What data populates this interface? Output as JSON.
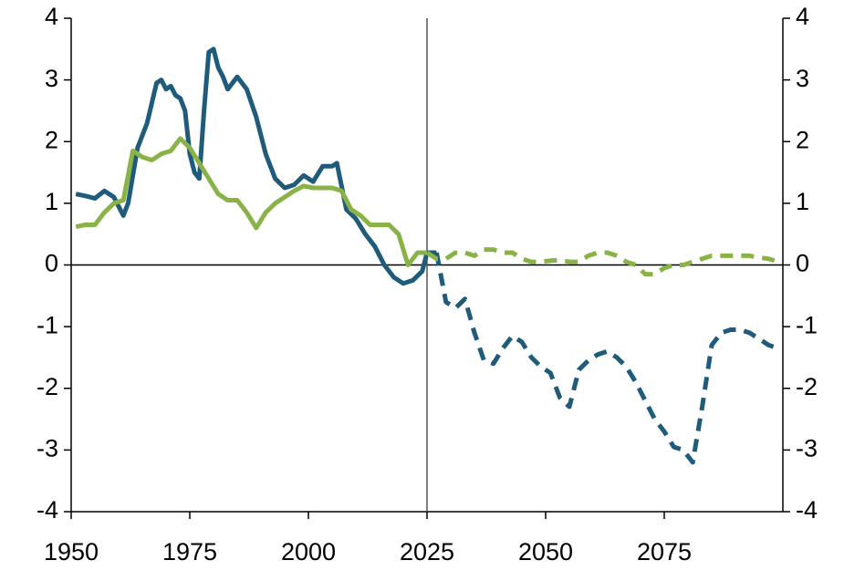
{
  "chart_data": {
    "type": "line",
    "xlim": [
      1950,
      2100
    ],
    "xticks": [
      1950,
      1975,
      2000,
      2025,
      2050,
      2075
    ],
    "ylim": [
      -4,
      4
    ],
    "yticks": [
      -4,
      -3,
      -2,
      -1,
      0,
      1,
      2,
      3,
      4
    ],
    "y2lim": [
      -4,
      4
    ],
    "y2ticks": [
      -4,
      -3,
      -2,
      -1,
      0,
      1,
      2,
      3,
      4
    ],
    "vline": 2025,
    "series": [
      {
        "color": "#1f5b7a",
        "style": "solid",
        "x": [
          1951,
          1953,
          1955,
          1957,
          1959,
          1961,
          1962,
          1964,
          1966,
          1968,
          1969,
          1970,
          1971,
          1972,
          1973,
          1974,
          1975,
          1976,
          1977,
          1978,
          1979,
          1980,
          1981,
          1982,
          1983,
          1985,
          1987,
          1989,
          1991,
          1993,
          1995,
          1997,
          1999,
          2001,
          2003,
          2005,
          2006,
          2008,
          2010,
          2012,
          2014,
          2016,
          2018,
          2020,
          2022,
          2024,
          2025,
          2027
        ],
        "values": [
          1.15,
          1.12,
          1.08,
          1.2,
          1.1,
          0.8,
          1.0,
          1.9,
          2.3,
          2.95,
          3.0,
          2.85,
          2.9,
          2.75,
          2.7,
          2.5,
          1.8,
          1.5,
          1.4,
          2.5,
          3.45,
          3.5,
          3.2,
          3.05,
          2.85,
          3.05,
          2.85,
          2.4,
          1.8,
          1.4,
          1.25,
          1.3,
          1.45,
          1.35,
          1.6,
          1.6,
          1.65,
          0.9,
          0.75,
          0.5,
          0.3,
          0.0,
          -0.2,
          -0.3,
          -0.25,
          -0.1,
          0.2,
          0.2
        ]
      },
      {
        "color": "#1f5b7a",
        "style": "dashed",
        "x": [
          2027,
          2029,
          2031,
          2033,
          2035,
          2037,
          2039,
          2041,
          2043,
          2045,
          2047,
          2049,
          2051,
          2053,
          2055,
          2057,
          2059,
          2061,
          2063,
          2065,
          2067,
          2069,
          2071,
          2073,
          2075,
          2077,
          2079,
          2081,
          2083,
          2085,
          2087,
          2089,
          2091,
          2093,
          2095,
          2097,
          2099
        ],
        "values": [
          0.2,
          -0.6,
          -0.7,
          -0.55,
          -1.1,
          -1.55,
          -1.6,
          -1.35,
          -1.15,
          -1.25,
          -1.5,
          -1.65,
          -1.75,
          -2.15,
          -2.3,
          -1.7,
          -1.55,
          -1.45,
          -1.4,
          -1.5,
          -1.65,
          -1.9,
          -2.2,
          -2.5,
          -2.7,
          -2.95,
          -3.0,
          -3.2,
          -2.3,
          -1.3,
          -1.1,
          -1.05,
          -1.05,
          -1.1,
          -1.2,
          -1.3,
          -1.35
        ]
      },
      {
        "color": "#8ab347",
        "style": "solid",
        "x": [
          1951,
          1953,
          1955,
          1957,
          1959,
          1961,
          1963,
          1965,
          1967,
          1969,
          1971,
          1973,
          1975,
          1977,
          1979,
          1981,
          1983,
          1985,
          1987,
          1989,
          1991,
          1993,
          1995,
          1997,
          1999,
          2001,
          2003,
          2005,
          2007,
          2009,
          2011,
          2013,
          2015,
          2017,
          2019,
          2021,
          2023,
          2025
        ],
        "values": [
          0.62,
          0.65,
          0.65,
          0.85,
          1.0,
          1.05,
          1.85,
          1.75,
          1.7,
          1.8,
          1.85,
          2.05,
          1.9,
          1.65,
          1.4,
          1.15,
          1.05,
          1.05,
          0.85,
          0.6,
          0.85,
          1.0,
          1.1,
          1.2,
          1.28,
          1.25,
          1.25,
          1.25,
          1.2,
          0.9,
          0.8,
          0.65,
          0.65,
          0.65,
          0.5,
          0.0,
          0.2,
          0.2
        ]
      },
      {
        "color": "#8ab347",
        "style": "dashed",
        "x": [
          2025,
          2027,
          2029,
          2031,
          2033,
          2035,
          2037,
          2039,
          2041,
          2043,
          2045,
          2047,
          2049,
          2051,
          2053,
          2055,
          2057,
          2059,
          2061,
          2063,
          2065,
          2067,
          2069,
          2071,
          2073,
          2075,
          2077,
          2079,
          2081,
          2083,
          2085,
          2087,
          2089,
          2091,
          2093,
          2095,
          2097,
          2099
        ],
        "values": [
          0.2,
          0.1,
          0.1,
          0.2,
          0.2,
          0.15,
          0.25,
          0.25,
          0.2,
          0.2,
          0.1,
          0.05,
          0.05,
          0.07,
          0.08,
          0.05,
          0.05,
          0.15,
          0.2,
          0.2,
          0.15,
          0.05,
          0.0,
          -0.15,
          -0.15,
          -0.05,
          0.0,
          0.0,
          0.05,
          0.1,
          0.15,
          0.15,
          0.15,
          0.15,
          0.15,
          0.12,
          0.1,
          0.05
        ]
      }
    ]
  }
}
